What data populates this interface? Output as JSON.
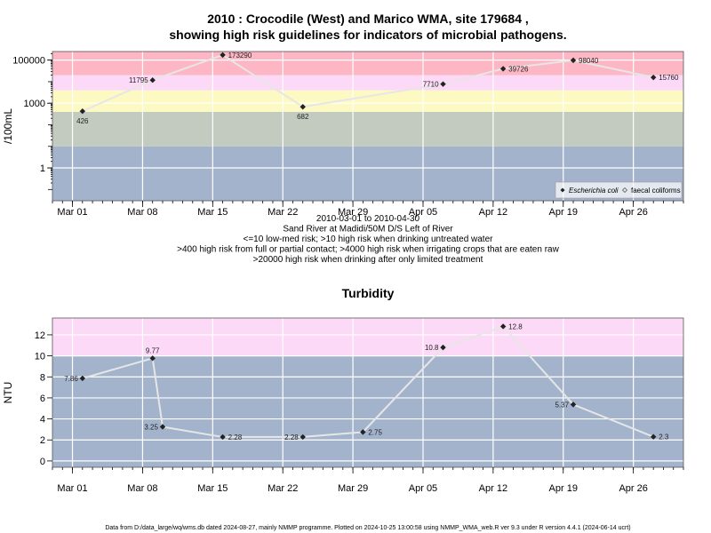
{
  "chart_data": [
    {
      "type": "scatter",
      "title": "2010 : Crocodile (West) and Marico WMA, site 179684 ,",
      "subtitle": "showing high risk guidelines for indicators of microbial pathogens.",
      "ylabel": "/100mL",
      "yscale": "log",
      "yticks": [
        "1",
        "1000",
        "100000"
      ],
      "xticks": [
        "Mar 01",
        "Mar 08",
        "Mar 15",
        "Mar 22",
        "Mar 29",
        "Apr 05",
        "Apr 12",
        "Apr 19",
        "Apr 26"
      ],
      "xlim": [
        "2010-02-27",
        "2010-05-01"
      ],
      "below_axis_text": [
        "2010-03-01 to 2010-04-30",
        "Sand River at Madidi/50M D/S Left of River",
        "<=10 low-med risk; >10 high risk when drinking untreated water",
        ">400 high risk from full or partial contact; >4000 high risk when irrigating crops that are eaten raw",
        ">20000 high risk when drinking after only limited treatment"
      ],
      "bands": [
        {
          "from": 0.03,
          "to": 10,
          "color": "#a3b3cc"
        },
        {
          "from": 10,
          "to": 400,
          "color": "#c3cbc0"
        },
        {
          "from": 400,
          "to": 4000,
          "color": "#fdf9c2"
        },
        {
          "from": 4000,
          "to": 20000,
          "color": "#fcd9f6"
        },
        {
          "from": 20000,
          "to": 250000,
          "color": "#fdb7c4"
        }
      ],
      "legend": {
        "position": "bottom-right",
        "entries": [
          "Escherichia coli",
          "faecal coliforms"
        ]
      },
      "series": [
        {
          "name": "Escherichia coli",
          "points": [
            {
              "date": "2010-03-02",
              "value": 426,
              "label": "426"
            },
            {
              "date": "2010-03-09",
              "value": 11795,
              "label": "11795"
            },
            {
              "date": "2010-03-16",
              "value": 173290,
              "label": "173290"
            },
            {
              "date": "2010-03-24",
              "value": 682,
              "label": "682"
            },
            {
              "date": "2010-04-07",
              "value": 7710,
              "label": "7710"
            },
            {
              "date": "2010-04-13",
              "value": 39726,
              "label": "39726"
            },
            {
              "date": "2010-04-20",
              "value": 98040,
              "label": "98040"
            },
            {
              "date": "2010-04-28",
              "value": 15760,
              "label": "15760"
            }
          ]
        }
      ]
    },
    {
      "type": "scatter",
      "title": "Turbidity",
      "ylabel": "NTU",
      "ylim": [
        -0.6,
        13.6
      ],
      "yticks": [
        "0",
        "2",
        "4",
        "6",
        "8",
        "10",
        "12"
      ],
      "xticks": [
        "Mar 01",
        "Mar 08",
        "Mar 15",
        "Mar 22",
        "Mar 29",
        "Apr 05",
        "Apr 12",
        "Apr 19",
        "Apr 26"
      ],
      "xlim": [
        "2010-02-27",
        "2010-05-01"
      ],
      "bands": [
        {
          "from": -0.6,
          "to": 10,
          "color": "#a3b3cc"
        },
        {
          "from": 10,
          "to": 13.6,
          "color": "#fcd9f6"
        }
      ],
      "series": [
        {
          "name": "",
          "points": [
            {
              "date": "2010-03-02",
              "value": 7.86,
              "label": "7.86"
            },
            {
              "date": "2010-03-09",
              "value": 9.77,
              "label": "9.77"
            },
            {
              "date": "2010-03-10",
              "value": 3.25,
              "label": "3.25"
            },
            {
              "date": "2010-03-16",
              "value": 2.28,
              "label": "2.28"
            },
            {
              "date": "2010-03-24",
              "value": 2.28,
              "label": "2.28"
            },
            {
              "date": "2010-03-30",
              "value": 2.75,
              "label": "2.75"
            },
            {
              "date": "2010-04-07",
              "value": 10.8,
              "label": "10.8"
            },
            {
              "date": "2010-04-13",
              "value": 12.8,
              "label": "12.8"
            },
            {
              "date": "2010-04-20",
              "value": 5.37,
              "label": "5.37"
            },
            {
              "date": "2010-04-28",
              "value": 2.3,
              "label": "2.3"
            }
          ]
        }
      ]
    }
  ],
  "footer": "Data from D:/data_large/wq/wms.db dated 2024-08-27, mainly NMMP programme. Plotted on 2024-10-25 13:00:58 using NMMP_WMA_web.R ver 9.3 under R version 4.4.1 (2024-06-14 ucrt)"
}
